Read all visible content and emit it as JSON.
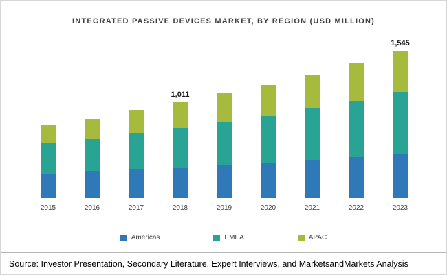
{
  "header": {
    "title": "INTEGRATED PASSIVE DEVICES MARKET, BY REGION (USD MILLION)"
  },
  "footer": {
    "source": "Source: Investor Presentation, Secondary Literature, Expert Interviews, and MarketsandMarkets Analysis"
  },
  "chart_data": {
    "type": "bar",
    "stacked": true,
    "title": "INTEGRATED PASSIVE DEVICES MARKET, BY REGION (USD MILLION)",
    "ylabel": "USD Million",
    "categories": [
      "2015",
      "2016",
      "2017",
      "2018",
      "2019",
      "2020",
      "2021",
      "2022",
      "2023"
    ],
    "series": [
      {
        "name": "Americas",
        "color": "#2f79b9",
        "values": [
          260,
          280,
          300,
          320,
          345,
          370,
          400,
          430,
          465
        ]
      },
      {
        "name": "EMEA",
        "color": "#29a393",
        "values": [
          320,
          345,
          380,
          415,
          455,
          495,
          540,
          590,
          645
        ]
      },
      {
        "name": "APAC",
        "color": "#a6ba3d",
        "values": [
          185,
          210,
          245,
          276,
          300,
          325,
          355,
          395,
          435
        ]
      }
    ],
    "totals": [
      765,
      835,
      925,
      1011,
      1100,
      1190,
      1295,
      1415,
      1545
    ],
    "data_labels": {
      "2018": "1,011",
      "2023": "1,545"
    },
    "legend_position": "bottom",
    "grid": false
  }
}
